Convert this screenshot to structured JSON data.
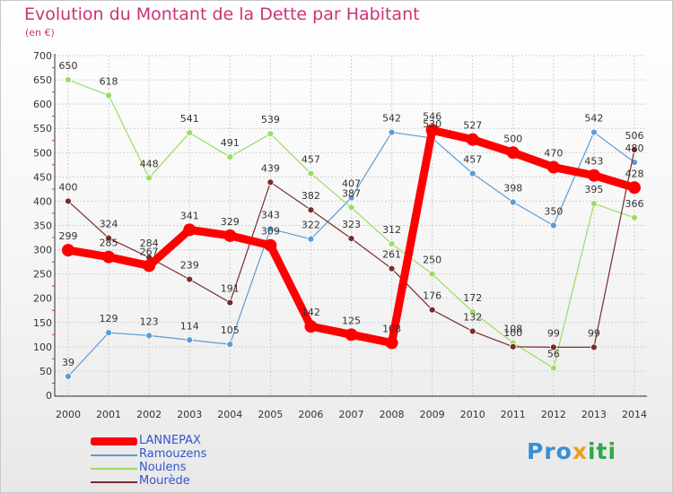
{
  "title": "Evolution du Montant de la Dette par Habitant",
  "unit": "(en €)",
  "logo": {
    "text": "Proxiti",
    "parts": [
      "Pro",
      "x",
      "iti"
    ]
  },
  "colors": {
    "LANNEPAX": "#ff0000",
    "Ramouzens": "#5a9bd5",
    "Noulens": "#99dd66",
    "Mourède": "#7a2a2a"
  },
  "chart_data": {
    "type": "line",
    "title": "Evolution du Montant de la Dette par Habitant",
    "ylabel": "(en €)",
    "xlabel": "",
    "ylim": [
      0,
      700
    ],
    "yticks": [
      0,
      50,
      100,
      150,
      200,
      250,
      300,
      350,
      400,
      450,
      500,
      550,
      600,
      650,
      700
    ],
    "x": [
      "2000",
      "2001",
      "2002",
      "2003",
      "2004",
      "2005",
      "2006",
      "2007",
      "2008",
      "2009",
      "2010",
      "2011",
      "2012",
      "2013",
      "2014"
    ],
    "grid": true,
    "legend_position": "bottom-left",
    "series": [
      {
        "name": "LANNEPAX",
        "values": [
          299,
          285,
          267,
          341,
          329,
          309,
          142,
          125,
          108,
          546,
          527,
          500,
          470,
          453,
          428
        ],
        "labels": [
          "299",
          "285",
          "267",
          "341",
          "329",
          "309",
          "142",
          "125",
          "108",
          "546",
          "527",
          "500",
          "470",
          "453",
          "428"
        ]
      },
      {
        "name": "Ramouzens",
        "values": [
          39,
          129,
          123,
          114,
          105,
          343,
          322,
          407,
          542,
          530,
          457,
          398,
          350,
          542,
          480
        ],
        "labels": [
          "39",
          "129",
          "123",
          "114",
          "105",
          "343",
          "322",
          "407",
          "542",
          "530",
          "457",
          "398",
          "350",
          "542",
          "480"
        ]
      },
      {
        "name": "Noulens",
        "values": [
          650,
          618,
          448,
          541,
          491,
          539,
          457,
          387,
          312,
          250,
          172,
          108,
          56,
          395,
          366
        ],
        "labels": [
          "650",
          "618",
          "448",
          "541",
          "491",
          "539",
          "457",
          "387",
          "312",
          "250",
          "172",
          "108",
          "56",
          "395",
          "366"
        ]
      },
      {
        "name": "Mourède",
        "values": [
          400,
          324,
          284,
          239,
          191,
          439,
          382,
          323,
          261,
          176,
          132,
          100,
          99,
          99,
          506
        ],
        "labels": [
          "400",
          "324",
          "284",
          "239",
          "191",
          "439",
          "382",
          "323",
          "261",
          "176",
          "132",
          "100",
          "99",
          "99",
          "506"
        ]
      }
    ]
  }
}
